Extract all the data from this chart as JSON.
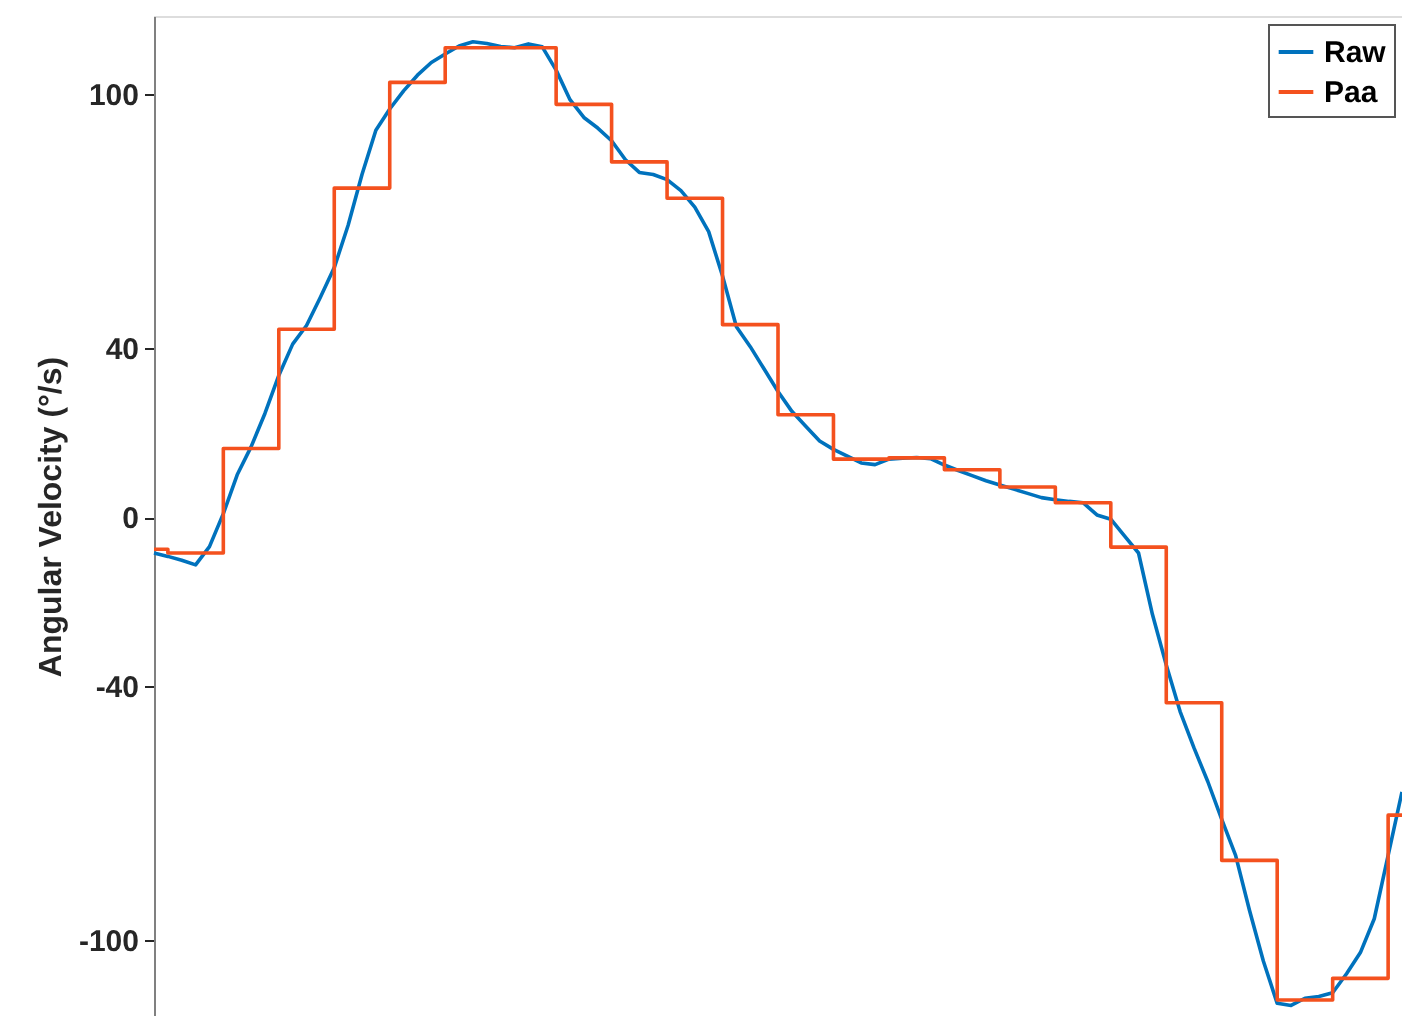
{
  "chart_data": {
    "type": "line",
    "ylabel": "Angular Velocity (°/s)",
    "ylim": [
      -118,
      118.5
    ],
    "yticks": [
      -100,
      -40,
      0,
      40,
      100
    ],
    "tick_labels": "y",
    "grid": false,
    "legend": "top right",
    "line_style": "solid",
    "marker": "none",
    "categories": [
      null,
      null,
      null,
      null,
      null,
      null,
      null,
      null,
      null,
      null,
      null,
      null,
      null,
      null,
      null,
      null,
      null,
      null,
      null,
      null,
      null,
      null,
      null,
      null,
      null,
      null,
      null,
      null,
      null,
      null,
      null,
      null,
      null,
      null,
      null,
      null,
      null,
      null,
      null,
      null,
      null,
      null,
      null,
      null,
      null,
      null,
      null,
      null,
      null,
      null,
      null,
      null,
      null,
      null,
      null,
      null,
      null,
      null,
      null,
      null,
      null,
      null,
      null,
      null,
      null,
      null,
      null,
      null,
      null,
      null,
      null,
      null,
      null,
      null,
      null,
      null,
      null,
      null,
      null,
      null,
      null,
      null,
      null,
      null,
      null,
      null,
      null,
      null,
      null,
      null,
      null
    ],
    "series": [
      {
        "name": "Raw",
        "type": "line",
        "color": "#0072bd",
        "values": [
          -8.5,
          -9.3,
          -10.2,
          -11.3,
          -7,
          0.8,
          10,
          16.6,
          24.5,
          33.5,
          40.9,
          45.3,
          52,
          59,
          69,
          81,
          91.5,
          96.5,
          100.8,
          104.5,
          107.5,
          109.5,
          111.4,
          112.4,
          112,
          111.3,
          111,
          111.9,
          111.2,
          105.7,
          98.7,
          94.5,
          92,
          89,
          84.5,
          81.5,
          81,
          79.8,
          77.2,
          73.3,
          67.5,
          57,
          45,
          40.3,
          35,
          29.7,
          25,
          21.5,
          18,
          16,
          14.4,
          12.8,
          12.4,
          13.7,
          13.9,
          14.1,
          13.8,
          12.3,
          11,
          9.8,
          8.6,
          7.6,
          6.6,
          5.6,
          4.6,
          4.1,
          3.7,
          3.4,
          0.5,
          -0.5,
          -4.5,
          -8.5,
          -23,
          -35,
          -46,
          -54.6,
          -62.6,
          -71.5,
          -80,
          -93,
          -105,
          -115,
          -115.5,
          -113.8,
          -113.4,
          -112.5,
          -108,
          -103,
          -95,
          -80,
          -65
        ]
      },
      {
        "name": "Paa",
        "type": "step",
        "color": "#f4511e",
        "values": [
          -7.6,
          -8.5,
          -8.5,
          -8.5,
          -8.5,
          16.2,
          16.2,
          16.2,
          16.2,
          44.4,
          44.4,
          44.4,
          44.4,
          77.8,
          77.8,
          77.8,
          77.8,
          102.8,
          102.8,
          102.8,
          102.8,
          111,
          111,
          111,
          111,
          111,
          111,
          111,
          111,
          97.6,
          97.6,
          97.6,
          97.6,
          84,
          84,
          84,
          84,
          75.4,
          75.4,
          75.4,
          75.4,
          45.5,
          45.5,
          45.5,
          45.5,
          24.2,
          24.2,
          24.2,
          24.2,
          13.7,
          13.7,
          13.7,
          13.7,
          14,
          14,
          14,
          14,
          11.2,
          11.2,
          11.2,
          11.2,
          7.1,
          7.1,
          7.1,
          7.1,
          3.4,
          3.4,
          3.4,
          3.4,
          -7.1,
          -7.1,
          -7.1,
          -7.1,
          -43.9,
          -43.9,
          -43.9,
          -43.9,
          -81.2,
          -81.2,
          -81.2,
          -81.2,
          -114.2,
          -114.2,
          -114.2,
          -114.2,
          -109.1,
          -109.1,
          -109.1,
          -109.1,
          -70.5,
          -70.5
        ]
      }
    ]
  }
}
